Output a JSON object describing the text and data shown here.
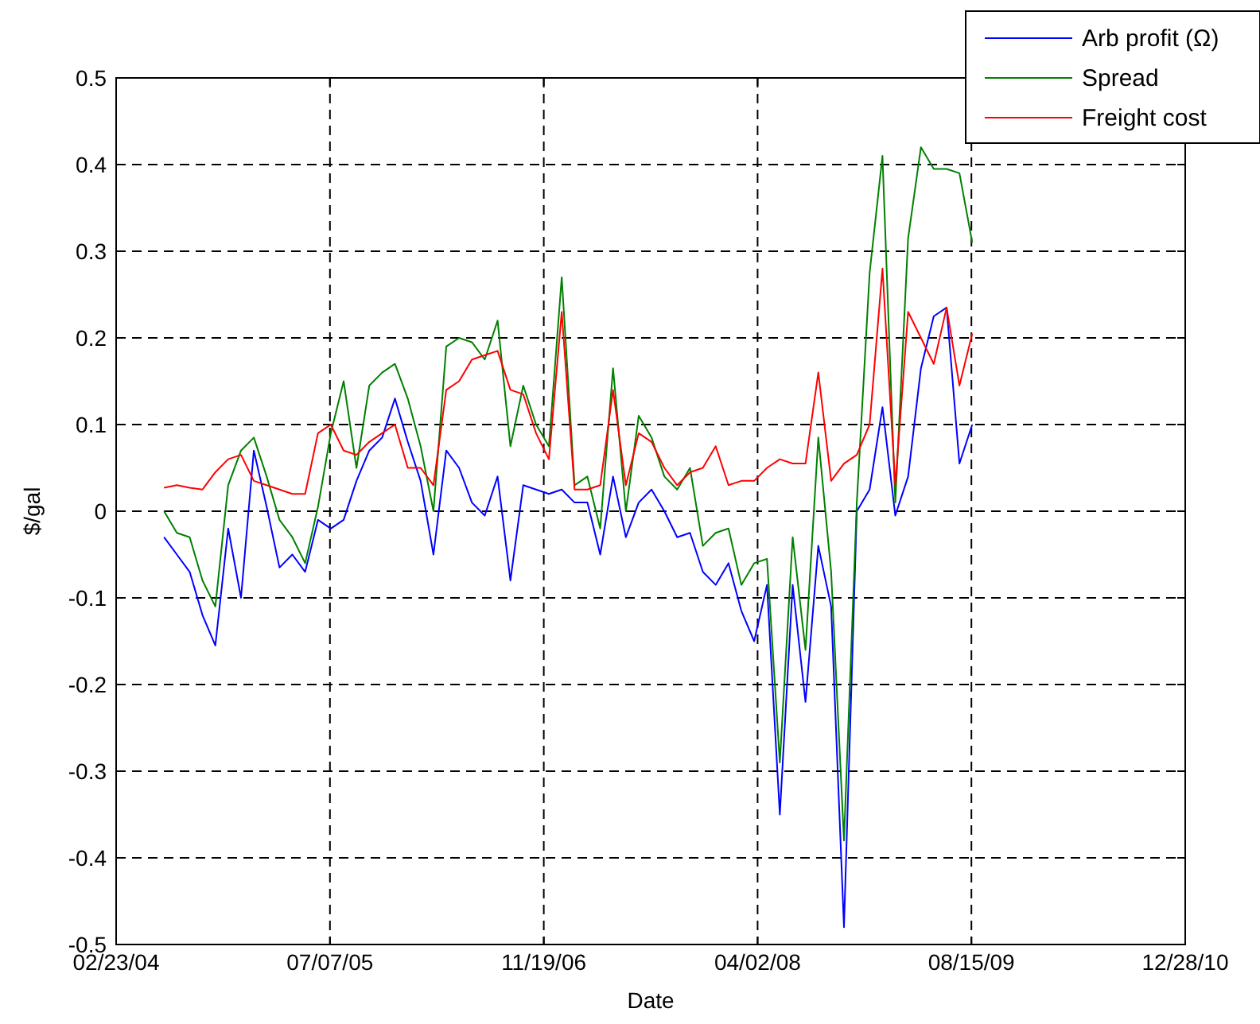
{
  "chart_data": {
    "type": "line",
    "xlabel": "Date",
    "ylabel": "$/gal",
    "x": [
      "2004-06-14",
      "2004-07-14",
      "2004-08-13",
      "2004-09-12",
      "2004-10-12",
      "2004-11-11",
      "2004-12-11",
      "2005-01-10",
      "2005-02-09",
      "2005-03-11",
      "2005-04-10",
      "2005-05-10",
      "2005-06-09",
      "2005-07-09",
      "2005-08-08",
      "2005-09-07",
      "2005-10-07",
      "2005-11-06",
      "2005-12-06",
      "2006-01-05",
      "2006-02-04",
      "2006-03-06",
      "2006-04-05",
      "2006-05-05",
      "2006-06-04",
      "2006-07-04",
      "2006-08-03",
      "2006-09-02",
      "2006-10-02",
      "2006-11-01",
      "2006-12-01",
      "2006-12-31",
      "2007-01-30",
      "2007-03-01",
      "2007-03-31",
      "2007-04-30",
      "2007-05-30",
      "2007-06-29",
      "2007-07-29",
      "2007-08-28",
      "2007-09-27",
      "2007-10-27",
      "2007-11-26",
      "2007-12-26",
      "2008-01-25",
      "2008-02-24",
      "2008-03-25",
      "2008-04-24",
      "2008-05-24",
      "2008-06-23",
      "2008-07-23",
      "2008-08-22",
      "2008-09-21",
      "2008-10-21",
      "2008-11-20",
      "2008-12-20",
      "2009-01-19",
      "2009-02-18",
      "2009-03-20",
      "2009-04-19",
      "2009-05-19",
      "2009-06-18",
      "2009-07-18",
      "2009-08-17"
    ],
    "series": [
      {
        "name": "Arb profit (Ω)",
        "color": "#0000ff",
        "values": [
          -0.03,
          -0.05,
          -0.07,
          -0.12,
          -0.155,
          -0.02,
          -0.1,
          0.07,
          0.005,
          -0.065,
          -0.05,
          -0.07,
          -0.01,
          -0.02,
          -0.01,
          0.035,
          0.07,
          0.085,
          0.13,
          0.08,
          0.035,
          -0.05,
          0.07,
          0.05,
          0.01,
          -0.005,
          0.04,
          -0.08,
          0.03,
          0.025,
          0.02,
          0.025,
          0.01,
          0.01,
          -0.05,
          0.04,
          -0.03,
          0.01,
          0.025,
          0,
          -0.03,
          -0.025,
          -0.07,
          -0.085,
          -0.06,
          -0.115,
          -0.15,
          -0.085,
          -0.35,
          -0.085,
          -0.22,
          -0.04,
          -0.11,
          -0.48,
          0,
          0.025,
          0.12,
          -0.005,
          0.04,
          0.165,
          0.225,
          0.235,
          0.055,
          0.1
        ]
      },
      {
        "name": "Spread",
        "color": "#008000",
        "values": [
          0,
          -0.025,
          -0.03,
          -0.08,
          -0.11,
          0.03,
          0.07,
          0.085,
          0.04,
          -0.01,
          -0.03,
          -0.06,
          0.005,
          0.09,
          0.15,
          0.05,
          0.145,
          0.16,
          0.17,
          0.13,
          0.075,
          0,
          0.19,
          0.2,
          0.195,
          0.175,
          0.22,
          0.075,
          0.145,
          0.1,
          0.075,
          0.27,
          0.03,
          0.04,
          -0.02,
          0.165,
          0,
          0.11,
          0.085,
          0.04,
          0.025,
          0.05,
          -0.04,
          -0.025,
          -0.02,
          -0.085,
          -0.06,
          -0.055,
          -0.29,
          -0.03,
          -0.16,
          0.085,
          -0.07,
          -0.38,
          0.01,
          0.275,
          0.41,
          0.01,
          0.315,
          0.42,
          0.395,
          0.395,
          0.39,
          0.31
        ]
      },
      {
        "name": "Freight cost",
        "color": "#ff0000",
        "values": [
          0.027,
          0.03,
          0.027,
          0.025,
          0.045,
          0.06,
          0.065,
          0.035,
          0.03,
          0.025,
          0.02,
          0.02,
          0.09,
          0.1,
          0.07,
          0.065,
          0.08,
          0.09,
          0.1,
          0.05,
          0.05,
          0.03,
          0.14,
          0.15,
          0.175,
          0.18,
          0.185,
          0.14,
          0.135,
          0.09,
          0.06,
          0.23,
          0.025,
          0.025,
          0.03,
          0.14,
          0.03,
          0.09,
          0.08,
          0.05,
          0.03,
          0.045,
          0.05,
          0.075,
          0.03,
          0.035,
          0.035,
          0.05,
          0.06,
          0.055,
          0.055,
          0.16,
          0.035,
          0.055,
          0.065,
          0.1,
          0.28,
          0.03,
          0.23,
          0.2,
          0.17,
          0.235,
          0.145,
          0.205
        ]
      }
    ],
    "xlim": [
      "2004-02-23",
      "2010-12-28"
    ],
    "xticks": [
      {
        "value": "2004-02-23",
        "label": "02/23/04"
      },
      {
        "value": "2005-07-07",
        "label": "07/07/05"
      },
      {
        "value": "2006-11-19",
        "label": "11/19/06"
      },
      {
        "value": "2008-04-02",
        "label": "04/02/08"
      },
      {
        "value": "2009-08-15",
        "label": "08/15/09"
      },
      {
        "value": "2010-12-28",
        "label": "12/28/10"
      }
    ],
    "ylim": [
      -0.5,
      0.5
    ],
    "yticks": [
      -0.5,
      -0.4,
      -0.3,
      -0.2,
      -0.1,
      0,
      0.1,
      0.2,
      0.3,
      0.4,
      0.5
    ],
    "grid": true,
    "legend": "top right"
  }
}
